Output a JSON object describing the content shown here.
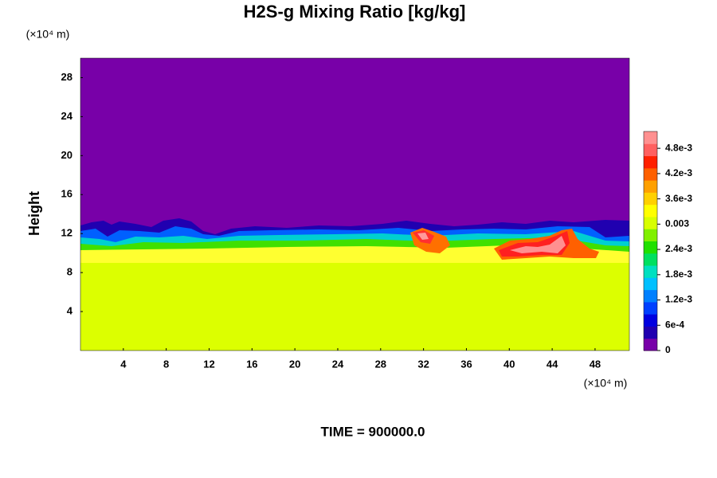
{
  "chart_data": {
    "type": "heatmap",
    "title": "H2S-g Mixing Ratio [kg/kg]",
    "ylabel": "Height",
    "x_unit": "(×10⁴ m)",
    "y_unit": "(×10⁴ m)",
    "time_label": "TIME = 900000.0",
    "xlim": [
      0,
      51.2
    ],
    "xticks": [
      4,
      8,
      12,
      16,
      20,
      24,
      28,
      32,
      36,
      40,
      44,
      48
    ],
    "ylim": [
      0,
      30
    ],
    "yticks": [
      4,
      8,
      12,
      16,
      20,
      24,
      28
    ],
    "colorlim": [
      0,
      0.0052
    ],
    "colorticks": [
      0,
      {
        "value": 0.0006,
        "label": "6e-4"
      },
      {
        "value": 0.0012,
        "label": "1.2e-3"
      },
      {
        "value": 0.0018,
        "label": "1.8e-3"
      },
      {
        "value": 0.0024,
        "label": "2.4e-3"
      },
      0.003,
      {
        "value": 0.0036,
        "label": "3.6e-3"
      },
      {
        "value": 0.0042,
        "label": "4.2e-3"
      },
      {
        "value": 0.0048,
        "label": "4.8e-3"
      }
    ],
    "colormap": [
      "#7800a8",
      "#2000b0",
      "#0000e0",
      "#0040ff",
      "#0080ff",
      "#00c0ff",
      "#00e0c0",
      "#00e060",
      "#20e000",
      "#80f000",
      "#d8ff00",
      "#ffff00",
      "#ffd000",
      "#ffa000",
      "#ff6000",
      "#ff2000",
      "#ff6060",
      "#ff9090"
    ]
  }
}
